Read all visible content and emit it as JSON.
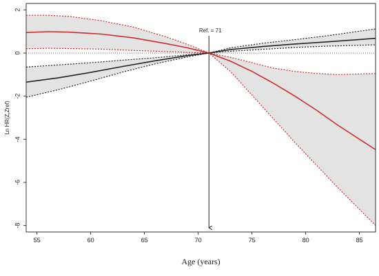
{
  "chart_data": {
    "type": "line",
    "xlabel": "Age (years)",
    "ylabel": "Ln HR(Z,Zref)",
    "xlim": [
      54,
      86.5
    ],
    "ylim": [
      -8.3,
      2.3
    ],
    "x_ticks": [
      55,
      60,
      65,
      70,
      75,
      80,
      85
    ],
    "y_ticks": [
      2,
      0,
      -2,
      -4,
      -6,
      -8
    ],
    "grid": false,
    "annotation": {
      "text": "Ref. = 71",
      "x": 71
    },
    "colors": {
      "black_series": "#222222",
      "red_series": "#cc2b2b",
      "band": "#e3e3e3"
    },
    "series": [
      {
        "color": "black",
        "x": [
          54,
          57,
          60,
          63,
          66,
          69,
          71,
          73,
          76,
          79,
          82,
          86.5
        ],
        "y": [
          -1.35,
          -1.15,
          -0.9,
          -0.62,
          -0.36,
          -0.12,
          0.0,
          0.16,
          0.3,
          0.42,
          0.52,
          0.68
        ],
        "lower": [
          -2.05,
          -1.7,
          -1.3,
          -0.88,
          -0.5,
          -0.18,
          0.0,
          0.08,
          0.17,
          0.26,
          0.32,
          0.38
        ],
        "upper": [
          -0.65,
          -0.55,
          -0.45,
          -0.33,
          -0.22,
          -0.08,
          0.0,
          0.24,
          0.45,
          0.62,
          0.8,
          1.12
        ]
      },
      {
        "color": "red",
        "x": [
          54,
          56,
          58,
          61,
          64,
          67,
          69,
          71,
          73,
          75,
          77,
          79,
          81,
          83,
          86.5
        ],
        "y": [
          0.95,
          0.99,
          0.97,
          0.88,
          0.7,
          0.44,
          0.24,
          0.0,
          -0.38,
          -0.85,
          -1.4,
          -2.0,
          -2.65,
          -3.35,
          -4.48
        ],
        "lower": [
          0.2,
          0.22,
          0.21,
          0.18,
          0.12,
          0.07,
          0.03,
          0.0,
          -0.85,
          -1.95,
          -3.05,
          -4.15,
          -5.2,
          -6.25,
          -8.0
        ],
        "upper": [
          1.75,
          1.75,
          1.7,
          1.5,
          1.2,
          0.75,
          0.4,
          0.0,
          -0.2,
          -0.45,
          -0.7,
          -0.85,
          -0.95,
          -1.0,
          -0.95
        ]
      }
    ]
  }
}
